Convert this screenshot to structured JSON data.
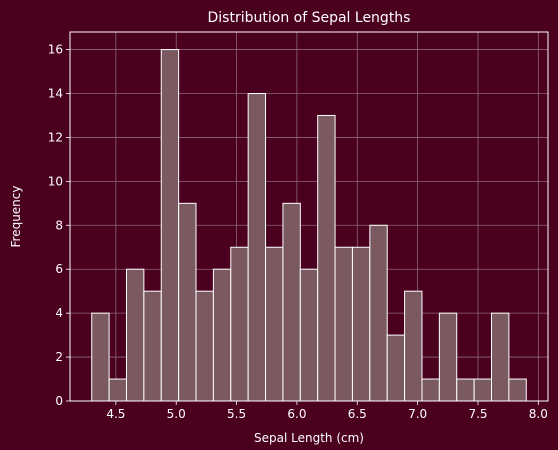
{
  "colors": {
    "background": "#4a001e",
    "bar_fill": "#7a5a60",
    "bar_edge": "#ffffff",
    "grid": "#8a6a7a",
    "text": "#ffffff"
  },
  "chart_data": {
    "type": "bar",
    "title": "Distribution of Sepal Lengths",
    "xlabel": "Sepal Length (cm)",
    "ylabel": "Frequency",
    "bin_edges": [
      4.3,
      4.444,
      4.588,
      4.732,
      4.876,
      5.02,
      5.164,
      5.308,
      5.452,
      5.596,
      5.74,
      5.884,
      6.028,
      6.172,
      6.316,
      6.46,
      6.604,
      6.748,
      6.892,
      7.036,
      7.18,
      7.324,
      7.468,
      7.612,
      7.756,
      7.9
    ],
    "values": [
      4,
      1,
      6,
      5,
      16,
      9,
      5,
      6,
      7,
      14,
      7,
      9,
      6,
      13,
      7,
      7,
      8,
      3,
      5,
      1,
      4,
      1,
      1,
      4,
      1
    ],
    "xlim": [
      4.12,
      8.08
    ],
    "ylim": [
      0,
      16.8
    ],
    "xticks": [
      "4.5",
      "5.0",
      "5.5",
      "6.0",
      "6.5",
      "7.0",
      "7.5",
      "8.0"
    ],
    "yticks": [
      "0",
      "2",
      "4",
      "6",
      "8",
      "10",
      "12",
      "14",
      "16"
    ],
    "grid": true,
    "legend": false
  }
}
